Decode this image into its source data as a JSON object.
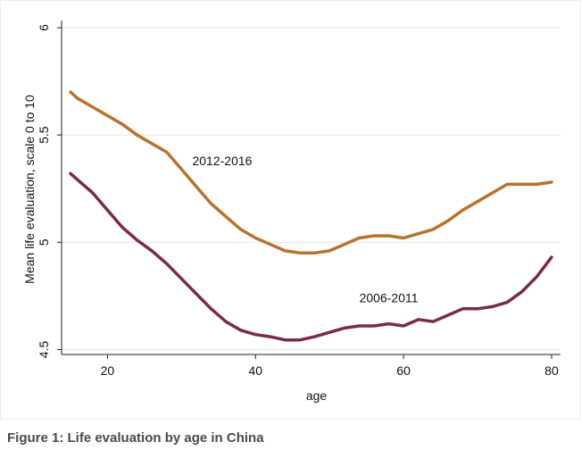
{
  "chart_data": {
    "type": "line",
    "xlabel": "age",
    "ylabel": "Mean life evaluation, scale 0 to 10",
    "xlim": [
      15,
      80
    ],
    "ylim": [
      4.5,
      6
    ],
    "x_ticks": [
      20,
      40,
      60,
      80
    ],
    "y_ticks": [
      4.5,
      5,
      5.5,
      6
    ],
    "y_tick_labels": [
      "4.5",
      "5",
      "5.5",
      "6"
    ],
    "grid": "horizontal",
    "series": [
      {
        "name": "2012-2016",
        "color": "#b9722f",
        "label_x": 35.5,
        "label_y": 5.36,
        "x": [
          15,
          16,
          18,
          20,
          22,
          24,
          26,
          28,
          30,
          32,
          34,
          36,
          38,
          40,
          42,
          44,
          46,
          48,
          50,
          52,
          54,
          56,
          58,
          60,
          62,
          64,
          66,
          68,
          70,
          72,
          74,
          76,
          78,
          80
        ],
        "y": [
          5.7,
          5.67,
          5.63,
          5.59,
          5.55,
          5.5,
          5.46,
          5.42,
          5.34,
          5.26,
          5.18,
          5.12,
          5.06,
          5.02,
          4.99,
          4.96,
          4.95,
          4.95,
          4.96,
          4.99,
          5.02,
          5.03,
          5.03,
          5.02,
          5.04,
          5.06,
          5.1,
          5.15,
          5.19,
          5.23,
          5.27,
          5.27,
          5.27,
          5.28
        ]
      },
      {
        "name": "2006-2011",
        "color": "#7a2d3e",
        "label_x": 58,
        "label_y": 4.72,
        "x": [
          15,
          16,
          18,
          20,
          22,
          24,
          26,
          28,
          30,
          32,
          34,
          36,
          38,
          40,
          42,
          44,
          46,
          48,
          50,
          52,
          54,
          56,
          58,
          60,
          62,
          64,
          66,
          68,
          70,
          72,
          74,
          76,
          78,
          80
        ],
        "y": [
          5.32,
          5.29,
          5.23,
          5.15,
          5.07,
          5.01,
          4.96,
          4.9,
          4.83,
          4.76,
          4.69,
          4.63,
          4.59,
          4.57,
          4.56,
          4.545,
          4.545,
          4.56,
          4.58,
          4.6,
          4.61,
          4.61,
          4.62,
          4.61,
          4.64,
          4.63,
          4.66,
          4.69,
          4.69,
          4.7,
          4.72,
          4.77,
          4.84,
          4.93
        ]
      }
    ]
  },
  "caption": "Figure 1: Life evaluation by age in China"
}
